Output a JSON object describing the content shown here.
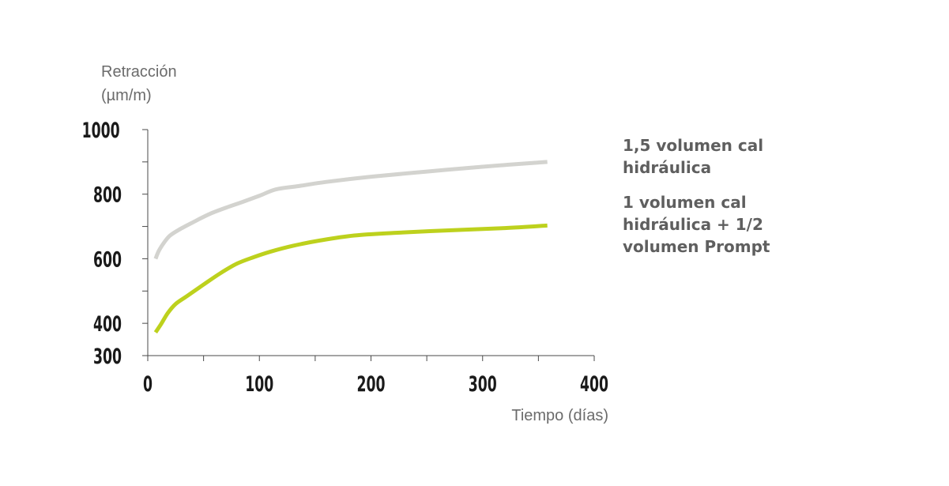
{
  "chart_data": {
    "type": "line",
    "ylabel": [
      "Retracción",
      "(µm/m)"
    ],
    "xlabel": "Tiempo (días)",
    "xlim": [
      0,
      400
    ],
    "ylim": [
      300,
      1000
    ],
    "x_ticks": [
      0,
      100,
      200,
      300,
      400
    ],
    "x_tick_labels": [
      "0",
      "100",
      "200",
      "300",
      "400"
    ],
    "y_ticks": [
      300,
      400,
      600,
      800,
      1000
    ],
    "y_tick_labels": [
      "300",
      "400",
      "600",
      "800",
      "1000"
    ],
    "y_minor_ticks": [
      300,
      400,
      500,
      600,
      700,
      800,
      900,
      1000
    ],
    "x_minor_ticks": [
      0,
      50,
      100,
      150,
      200,
      250,
      300,
      350,
      400
    ],
    "grid": false,
    "legend_position": "right",
    "series": [
      {
        "name": "1,5 volumen cal hidráulica",
        "color": "#d3d3cf",
        "points": [
          [
            7,
            600
          ],
          [
            10,
            625
          ],
          [
            15,
            652
          ],
          [
            20,
            672
          ],
          [
            28,
            690
          ],
          [
            40,
            712
          ],
          [
            55,
            738
          ],
          [
            70,
            758
          ],
          [
            85,
            776
          ],
          [
            100,
            795
          ],
          [
            115,
            815
          ],
          [
            135,
            825
          ],
          [
            160,
            838
          ],
          [
            200,
            854
          ],
          [
            250,
            870
          ],
          [
            300,
            885
          ],
          [
            358,
            900
          ]
        ]
      },
      {
        "name": "1 volumen cal hidráulica + 1/2 volumen Prompt",
        "color": "#bdd11d",
        "points": [
          [
            7,
            372
          ],
          [
            12,
            398
          ],
          [
            18,
            432
          ],
          [
            25,
            460
          ],
          [
            35,
            484
          ],
          [
            50,
            520
          ],
          [
            65,
            555
          ],
          [
            80,
            585
          ],
          [
            95,
            605
          ],
          [
            110,
            622
          ],
          [
            130,
            640
          ],
          [
            155,
            657
          ],
          [
            185,
            672
          ],
          [
            220,
            680
          ],
          [
            270,
            688
          ],
          [
            320,
            695
          ],
          [
            358,
            703
          ]
        ]
      }
    ]
  }
}
